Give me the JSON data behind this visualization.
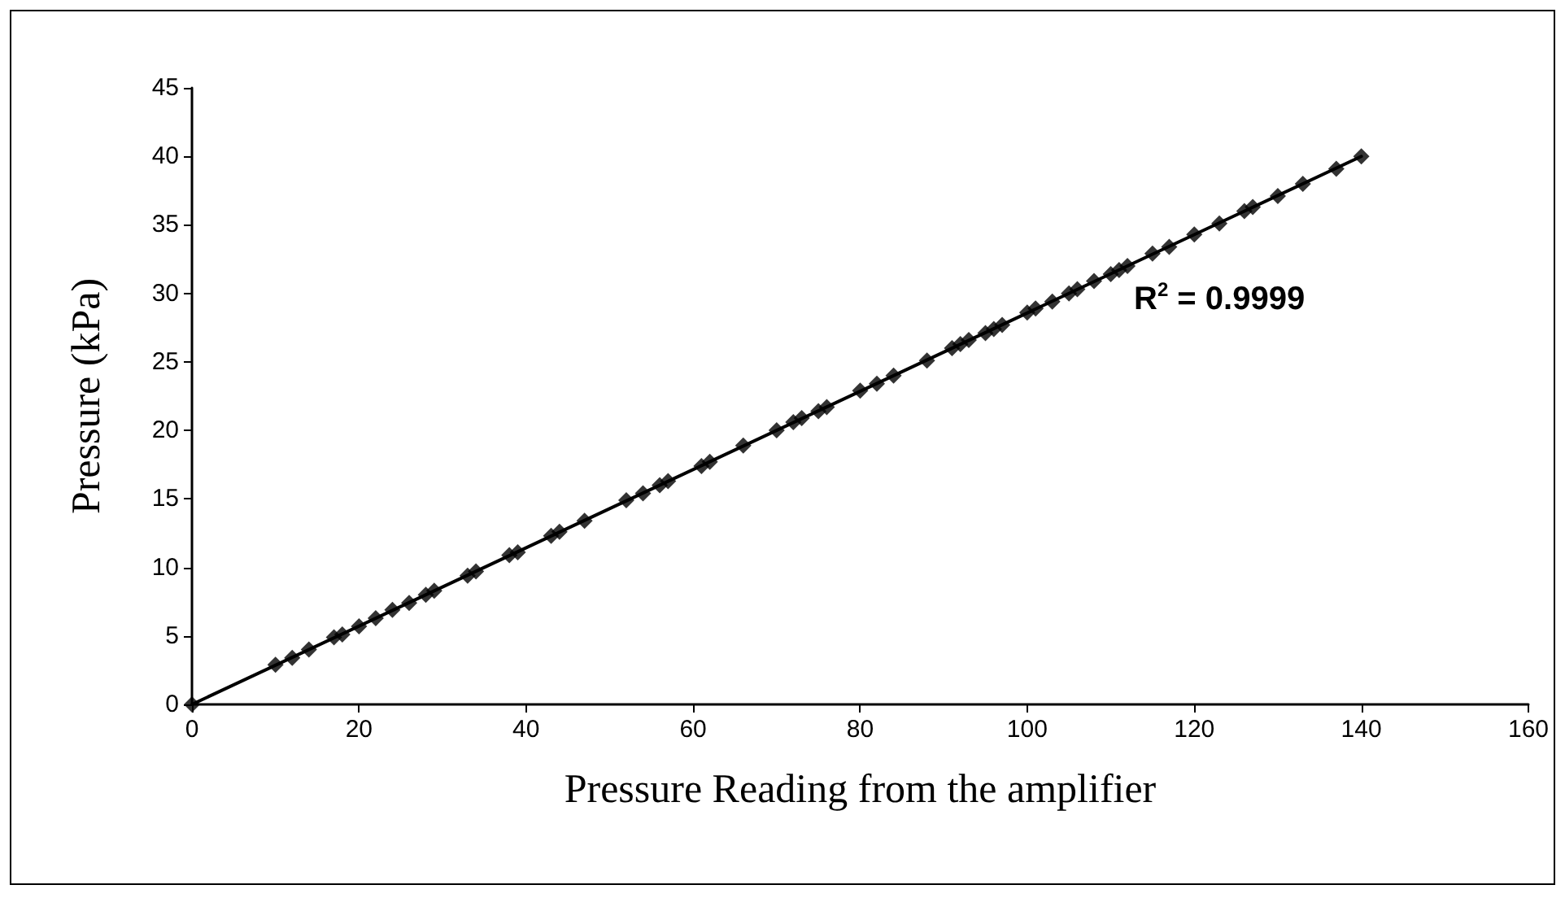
{
  "chart_data": {
    "type": "scatter",
    "xlabel": "Pressure Reading from the amplifier",
    "ylabel": "Pressure (kPa)",
    "xlim": [
      0,
      160
    ],
    "xticks": [
      0,
      20,
      40,
      60,
      80,
      100,
      120,
      140,
      160
    ],
    "ylim": [
      0,
      45
    ],
    "yticks": [
      0,
      5,
      10,
      15,
      20,
      25,
      30,
      35,
      40,
      45
    ],
    "grid": false,
    "marker": "diamond",
    "annotations": [
      "R$^{2}$ = 0.9999"
    ],
    "series": [
      {
        "color": "#000000",
        "x": [
          0,
          10,
          12,
          14,
          17,
          18,
          20,
          22,
          24,
          26,
          28,
          29,
          33,
          34,
          38,
          39,
          43,
          44,
          47,
          52,
          54,
          56,
          57,
          61,
          62,
          66,
          70,
          72,
          73,
          75,
          76,
          80,
          82,
          84,
          88,
          91,
          92,
          93,
          95,
          96,
          97,
          100,
          101,
          103,
          105,
          106,
          108,
          110,
          111,
          112,
          115,
          117,
          120,
          123,
          126,
          127,
          130,
          133,
          137,
          140
        ],
        "values": [
          0,
          2.9,
          3.4,
          4.0,
          4.9,
          5.1,
          5.7,
          6.3,
          6.9,
          7.4,
          8.0,
          8.3,
          9.4,
          9.7,
          10.9,
          11.1,
          12.3,
          12.6,
          13.4,
          14.9,
          15.4,
          16.0,
          16.3,
          17.4,
          17.7,
          18.9,
          20.0,
          20.6,
          20.9,
          21.4,
          21.7,
          22.9,
          23.4,
          24.0,
          25.1,
          26.0,
          26.3,
          26.6,
          27.1,
          27.4,
          27.7,
          28.6,
          28.9,
          29.4,
          30.0,
          30.3,
          30.9,
          31.4,
          31.7,
          32.0,
          32.9,
          33.4,
          34.3,
          35.1,
          36.0,
          36.3,
          37.1,
          38.0,
          39.1,
          40.0
        ]
      },
      {
        "type": "line",
        "color": "#000000",
        "line_style": "solid",
        "marker": "none",
        "x": [
          0,
          140
        ],
        "values": [
          0,
          40
        ]
      }
    ]
  }
}
